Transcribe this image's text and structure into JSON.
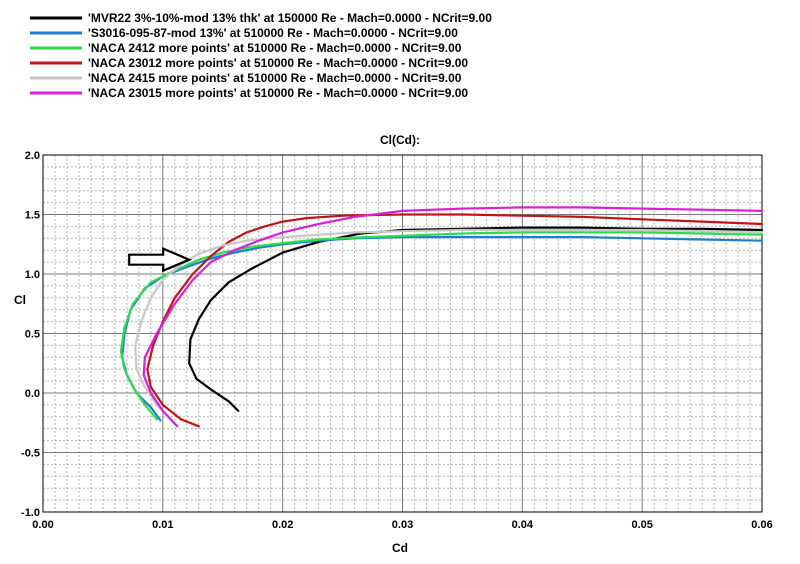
{
  "chart_data": {
    "type": "line",
    "title": "Cl(Cd):",
    "xlabel": "Cd",
    "ylabel": "Cl",
    "xlim": [
      0.0,
      0.06
    ],
    "ylim": [
      -1.0,
      2.0
    ],
    "x_ticks": [
      0.0,
      0.01,
      0.02,
      0.03,
      0.04,
      0.05,
      0.06
    ],
    "x_tick_labels": [
      "0.00",
      "0.01",
      "0.02",
      "0.03",
      "0.04",
      "0.05",
      "0.06"
    ],
    "y_ticks": [
      2.0,
      1.5,
      1.0,
      0.5,
      0.0,
      -0.5,
      -1.0
    ],
    "y_tick_labels": [
      "2.0",
      "1.5",
      "1.0",
      "0.5",
      "0.0",
      "-0.5",
      "-1.0"
    ],
    "grid": true,
    "legend_position": "top-left",
    "annotation": {
      "type": "arrow",
      "direction": "right",
      "tip": [
        0.0122,
        1.12
      ]
    },
    "series": [
      {
        "name": "'MVR22 3%-10%-mod 13% thk' at 150000 Re - Mach=0.0000 - NCrit=9.00",
        "color": "#000000",
        "x": [
          0.0163,
          0.0155,
          0.014,
          0.0128,
          0.0122,
          0.0123,
          0.013,
          0.014,
          0.0155,
          0.0175,
          0.02,
          0.023,
          0.0265,
          0.03,
          0.035,
          0.04,
          0.045,
          0.05,
          0.055,
          0.06
        ],
        "y": [
          -0.15,
          -0.07,
          0.03,
          0.12,
          0.25,
          0.45,
          0.62,
          0.78,
          0.93,
          1.05,
          1.18,
          1.27,
          1.34,
          1.37,
          1.38,
          1.39,
          1.39,
          1.38,
          1.38,
          1.37
        ]
      },
      {
        "name": "'S3016-095-87-mod 13%' at 510000 Re - Mach=0.0000 - NCrit=9.00",
        "color": "#1e7fd0",
        "x": [
          0.0098,
          0.009,
          0.0078,
          0.007,
          0.0066,
          0.0068,
          0.0073,
          0.0085,
          0.01,
          0.012,
          0.014,
          0.016,
          0.018,
          0.02,
          0.023,
          0.026,
          0.03,
          0.035,
          0.04,
          0.045,
          0.05,
          0.055,
          0.06
        ],
        "y": [
          -0.23,
          -0.12,
          0.0,
          0.15,
          0.3,
          0.5,
          0.7,
          0.88,
          0.98,
          1.06,
          1.13,
          1.18,
          1.22,
          1.25,
          1.28,
          1.3,
          1.31,
          1.31,
          1.31,
          1.31,
          1.3,
          1.29,
          1.28
        ]
      },
      {
        "name": "'NACA 2412 more points' at 510000 Re - Mach=0.0000 - NCrit=9.00",
        "color": "#2ddc4c",
        "x": [
          0.0095,
          0.0085,
          0.0075,
          0.0068,
          0.0065,
          0.0068,
          0.0075,
          0.009,
          0.011,
          0.013,
          0.015,
          0.0175,
          0.02,
          0.023,
          0.027,
          0.03,
          0.035,
          0.04,
          0.045,
          0.05,
          0.055,
          0.06
        ],
        "y": [
          -0.22,
          -0.1,
          0.05,
          0.2,
          0.35,
          0.55,
          0.75,
          0.93,
          1.03,
          1.12,
          1.18,
          1.23,
          1.26,
          1.29,
          1.31,
          1.32,
          1.34,
          1.35,
          1.35,
          1.35,
          1.34,
          1.33
        ]
      },
      {
        "name": "'NACA 23012 more points' at 510000 Re - Mach=0.0000 - NCrit=9.00",
        "color": "#c0141c",
        "x": [
          0.013,
          0.0115,
          0.01,
          0.009,
          0.0087,
          0.0092,
          0.01,
          0.011,
          0.0125,
          0.014,
          0.0155,
          0.017,
          0.0185,
          0.02,
          0.022,
          0.025,
          0.03,
          0.035,
          0.04,
          0.045,
          0.05,
          0.055,
          0.06
        ],
        "y": [
          -0.28,
          -0.22,
          -0.1,
          0.05,
          0.2,
          0.4,
          0.6,
          0.8,
          1.0,
          1.15,
          1.27,
          1.35,
          1.4,
          1.44,
          1.47,
          1.49,
          1.5,
          1.5,
          1.49,
          1.48,
          1.46,
          1.44,
          1.42
        ]
      },
      {
        "name": "'NACA 2415 more points' at 510000 Re - Mach=0.0000 - NCrit=9.00",
        "color": "#c8c8c8",
        "x": [
          0.0105,
          0.0095,
          0.0085,
          0.0078,
          0.0077,
          0.0082,
          0.009,
          0.01,
          0.0115,
          0.013,
          0.015,
          0.017,
          0.02,
          0.023,
          0.026,
          0.03,
          0.035,
          0.04,
          0.045,
          0.05,
          0.055,
          0.06
        ],
        "y": [
          -0.2,
          -0.1,
          0.05,
          0.2,
          0.4,
          0.6,
          0.8,
          0.95,
          1.08,
          1.17,
          1.24,
          1.28,
          1.31,
          1.33,
          1.35,
          1.36,
          1.37,
          1.37,
          1.37,
          1.37,
          1.36,
          1.35
        ]
      },
      {
        "name": "'NACA 23015 more points' at 510000 Re - Mach=0.0000 - NCrit=9.00",
        "color": "#d822d8",
        "x": [
          0.0112,
          0.01,
          0.009,
          0.0084,
          0.0085,
          0.0095,
          0.011,
          0.0125,
          0.014,
          0.016,
          0.018,
          0.02,
          0.023,
          0.026,
          0.03,
          0.035,
          0.04,
          0.045,
          0.05,
          0.055,
          0.06
        ],
        "y": [
          -0.28,
          -0.15,
          0.0,
          0.15,
          0.3,
          0.5,
          0.75,
          0.95,
          1.1,
          1.2,
          1.28,
          1.35,
          1.42,
          1.48,
          1.53,
          1.55,
          1.56,
          1.56,
          1.55,
          1.54,
          1.53
        ]
      }
    ]
  }
}
